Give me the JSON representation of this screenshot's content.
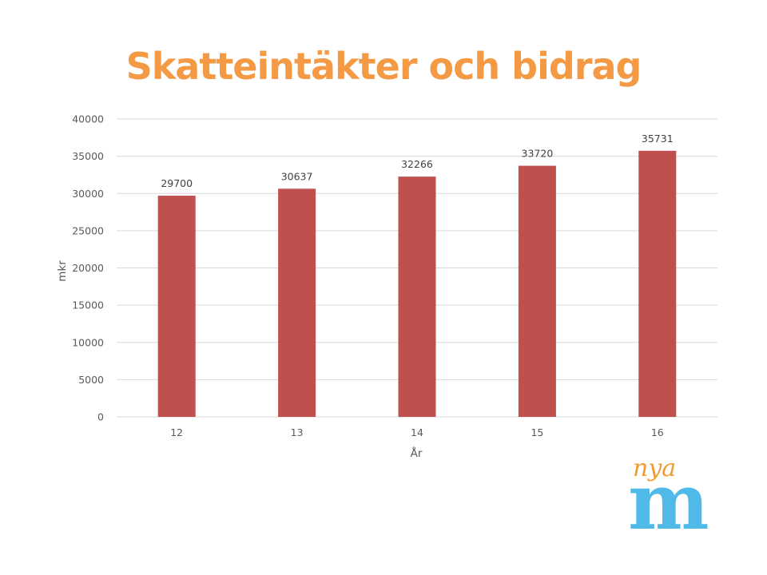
{
  "slide": {
    "title": "Skatteintäkter och bidrag"
  },
  "logo": {
    "text_top": "nya",
    "text_main": "m",
    "color_top": "#F39A2E",
    "color_main": "#4FB9E8"
  },
  "colors": {
    "title": "#F59A44",
    "bar": "#C0504D",
    "grid": "#D9D9D9",
    "axis_text": "#595959",
    "label_text": "#404040"
  },
  "chart_data": {
    "type": "bar",
    "title": "",
    "categories": [
      "12",
      "13",
      "14",
      "15",
      "16"
    ],
    "values": [
      29700,
      30637,
      32266,
      33720,
      35731
    ],
    "data_labels": [
      "29700",
      "30637",
      "32266",
      "33720",
      "35731"
    ],
    "xlabel": "År",
    "ylabel": "mkr",
    "ylim": [
      0,
      40000
    ],
    "yticks": [
      "0",
      "5000",
      "10000",
      "15000",
      "20000",
      "25000",
      "30000",
      "35000",
      "40000"
    ],
    "ytick_values": [
      0,
      5000,
      10000,
      15000,
      20000,
      25000,
      30000,
      35000,
      40000
    ],
    "grid": true,
    "legend": "none"
  }
}
